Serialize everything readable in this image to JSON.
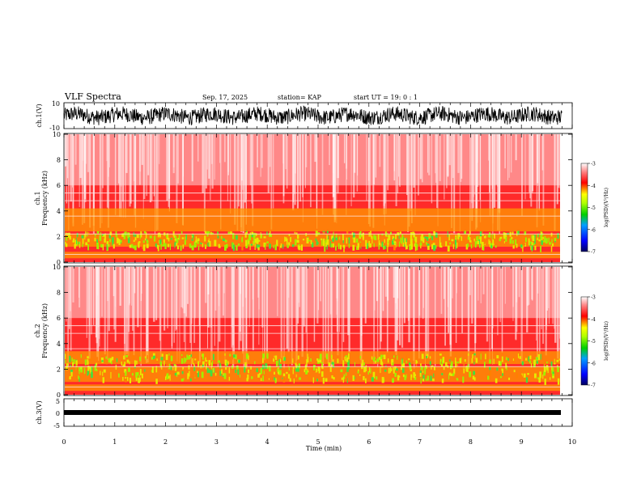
{
  "header": {
    "title": "VLF Spectra",
    "date": "Sep. 17, 2025",
    "station": "station= KAP",
    "start": "start  UT  =   19: 0  : 1"
  },
  "chart_data": [
    {
      "type": "line",
      "name": "ch1-waveform",
      "title": "",
      "ylabel": "ch.1(V)",
      "ylim": [
        -10,
        10
      ],
      "xlim": [
        0,
        10
      ],
      "yticks": [
        "10",
        "-10"
      ],
      "description_values": {
        "mean_level": 0,
        "amplitude_envelope": [
          -10,
          5
        ]
      }
    },
    {
      "type": "heatmap",
      "name": "ch1-spectrogram",
      "ylabel": "ch.1\nFrequency (kHz)",
      "ylabel_line1": "ch.1",
      "ylabel_line2": "Frequency (kHz)",
      "ylim": [
        0,
        10
      ],
      "xlim": [
        0,
        9.8
      ],
      "yticks": [
        "0",
        "2",
        "4",
        "6",
        "8",
        "10"
      ],
      "bands_khz": [
        [
          0.3,
          0.8
        ],
        [
          1.2,
          2.2
        ],
        [
          2.4,
          3.6
        ],
        [
          3.6,
          4.2
        ]
      ],
      "dominant_band_khz": [
        1.0,
        2.2
      ]
    },
    {
      "type": "heatmap",
      "name": "ch2-spectrogram",
      "ylabel_line1": "ch.2",
      "ylabel_line2": "Frequency (kHz)",
      "ylim": [
        0,
        10
      ],
      "xlim": [
        0,
        9.8
      ],
      "yticks": [
        "0",
        "2",
        "4",
        "6",
        "8",
        "10"
      ],
      "bands_khz": [
        [
          0.3,
          0.8
        ],
        [
          1.0,
          2.2
        ],
        [
          2.4,
          3.4
        ]
      ],
      "dominant_band_khz": [
        1.0,
        3.0
      ]
    },
    {
      "type": "line",
      "name": "ch3-waveform",
      "ylabel": "ch.3(V)",
      "ylim": [
        -5,
        5
      ],
      "xlim": [
        0,
        10
      ],
      "yticks": [
        "5",
        "0",
        "-5"
      ],
      "level": -1
    }
  ],
  "xaxis": {
    "label": "Time (min)",
    "ticks": [
      "0",
      "1",
      "2",
      "3",
      "4",
      "5",
      "6",
      "7",
      "8",
      "9",
      "10"
    ],
    "range": [
      0,
      10
    ]
  },
  "colorbar": {
    "label": "log(PSD)(V²/Hz)",
    "ticks": [
      "-3",
      "-4",
      "-5",
      "-6",
      "-7"
    ],
    "range": [
      -7,
      -3
    ],
    "colors": [
      "#000080",
      "#0000ff",
      "#00c000",
      "#ffff00",
      "#ff0000",
      "#ffffff"
    ]
  }
}
